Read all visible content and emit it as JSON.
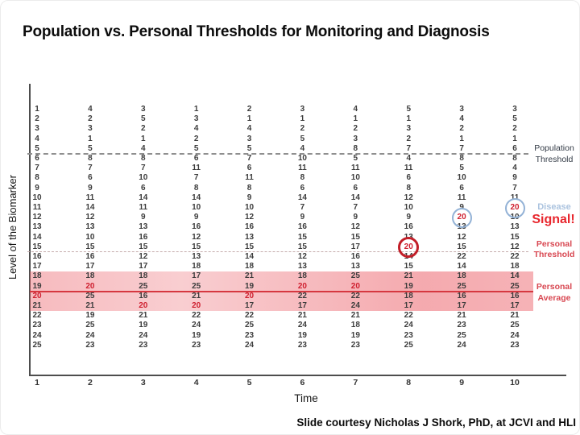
{
  "slide": {
    "title": "Population vs. Personal Thresholds for Monitoring and Diagnosis",
    "credit": "Slide courtesy Nicholas J Shork, PhD, at JCVI and HLI"
  },
  "annotations": {
    "population_threshold": "Population\nThreshold",
    "disease": "Disease",
    "signal": "Signal!",
    "personal_threshold": "Personal\nThreshold",
    "personal_average": "Personal\nAverage"
  },
  "colors": {
    "signal_red": "#e8262d",
    "threshold_label_red": "#d84751",
    "disease_blue": "#abc3df",
    "circle_red": "#c21e28",
    "circle_blue": "#93b2d6",
    "band_pink": "#eb5c65",
    "average_line_red": "#d63840",
    "population_dash_gray": "#8f8f8f",
    "number_text": "#3c3c3c"
  },
  "chart_data": {
    "type": "table",
    "title": "Population vs. Personal Thresholds for Monitoring and Diagnosis",
    "xlabel": "Time",
    "ylabel": "Level of the Biomarker",
    "x_ticks": [
      "1",
      "2",
      "3",
      "4",
      "5",
      "6",
      "7",
      "8",
      "9",
      "10"
    ],
    "grid_note": "columns[i] = biomarker values shown at time i+1, listed top row (level 1) to bottom row (level 25)",
    "columns": [
      [
        1,
        2,
        3,
        4,
        5,
        6,
        7,
        8,
        9,
        10,
        11,
        12,
        13,
        14,
        15,
        16,
        17,
        18,
        19,
        20,
        21,
        22,
        23,
        24,
        25
      ],
      [
        4,
        2,
        3,
        1,
        5,
        8,
        7,
        6,
        9,
        11,
        14,
        12,
        13,
        10,
        15,
        16,
        17,
        18,
        20,
        25,
        21,
        19,
        25,
        24,
        23
      ],
      [
        3,
        5,
        2,
        1,
        4,
        8,
        7,
        10,
        6,
        14,
        11,
        9,
        13,
        16,
        15,
        12,
        17,
        18,
        25,
        16,
        20,
        21,
        19,
        24,
        23
      ],
      [
        1,
        3,
        4,
        2,
        5,
        6,
        11,
        7,
        8,
        14,
        10,
        9,
        16,
        12,
        15,
        13,
        18,
        17,
        25,
        21,
        20,
        22,
        24,
        19,
        23
      ],
      [
        2,
        1,
        4,
        3,
        5,
        7,
        6,
        11,
        8,
        9,
        10,
        12,
        16,
        13,
        15,
        14,
        18,
        21,
        19,
        20,
        17,
        22,
        25,
        23,
        24
      ],
      [
        3,
        1,
        2,
        5,
        4,
        10,
        11,
        8,
        6,
        14,
        7,
        9,
        16,
        15,
        15,
        12,
        13,
        18,
        20,
        22,
        17,
        21,
        24,
        19,
        23
      ],
      [
        4,
        1,
        2,
        3,
        8,
        5,
        11,
        10,
        6,
        14,
        7,
        9,
        12,
        15,
        17,
        16,
        13,
        25,
        20,
        22,
        24,
        21,
        18,
        19,
        23
      ],
      [
        5,
        1,
        3,
        2,
        7,
        4,
        11,
        6,
        8,
        12,
        10,
        9,
        16,
        13,
        20,
        14,
        15,
        21,
        19,
        18,
        17,
        22,
        24,
        23,
        25
      ],
      [
        3,
        4,
        2,
        1,
        7,
        8,
        5,
        10,
        6,
        11,
        9,
        20,
        13,
        12,
        15,
        22,
        14,
        18,
        25,
        16,
        17,
        21,
        23,
        25,
        24
      ],
      [
        3,
        5,
        2,
        1,
        6,
        8,
        4,
        9,
        7,
        11,
        20,
        10,
        13,
        15,
        12,
        22,
        18,
        14,
        25,
        16,
        17,
        21,
        25,
        24,
        23
      ]
    ],
    "highlight_value": 20,
    "red_row_by_column": [
      20,
      19,
      21,
      21,
      20,
      19,
      19,
      15,
      12,
      11
    ],
    "circled_cells": [
      {
        "column": 8,
        "row": 15,
        "value": 20,
        "circle": "red"
      },
      {
        "column": 9,
        "row": 12,
        "value": 20,
        "circle": "blue"
      },
      {
        "column": 10,
        "row": 11,
        "value": 20,
        "circle": "blue"
      }
    ],
    "reference_lines": [
      {
        "name": "Population Threshold",
        "style": "dashed gray",
        "between_rows": [
          5,
          6
        ]
      },
      {
        "name": "Personal Threshold",
        "style": "dashed light",
        "between_rows": [
          15,
          16
        ]
      },
      {
        "name": "Personal Average",
        "style": "solid red",
        "between_rows": [
          19,
          20
        ]
      }
    ],
    "highlight_band_rows": [
      18,
      21
    ],
    "legend_position": "right",
    "grid": "off"
  }
}
